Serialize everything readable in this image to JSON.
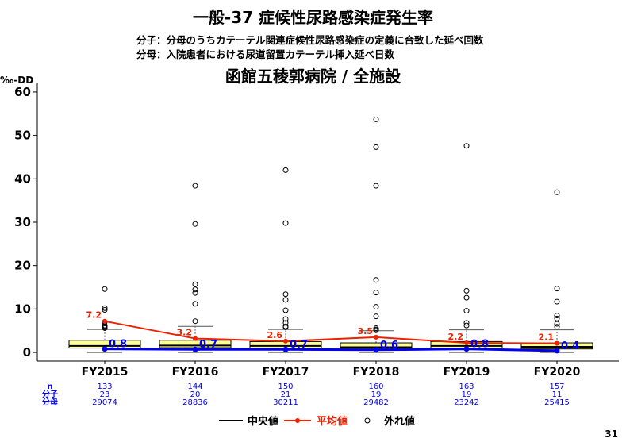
{
  "header": {
    "title": "一般-37  症候性尿路感染症発生率",
    "numerator_note": "分子：分母のうちカテーテル関連症候性尿路感染症の定義に合致した延べ回数",
    "denominator_note": "分母：入院患者における尿道留置カテーテル挿入延べ日数",
    "subtitle": "函館五稜郭病院  /  全施設",
    "y_unit": "‰-DD",
    "page_number": "31"
  },
  "colors": {
    "median": "#0000ee",
    "mean": "#ee2200",
    "box_fill": "#ffff99",
    "counts": "#0000ee"
  },
  "chart_data": {
    "type": "box",
    "categories": [
      "FY2015",
      "FY2016",
      "FY2017",
      "FY2018",
      "FY2019",
      "FY2020"
    ],
    "ylim": [
      -2,
      62
    ],
    "yticks": [
      0,
      10,
      20,
      30,
      40,
      50,
      60
    ],
    "hospital_values": [
      0.8,
      0.7,
      0.7,
      0.6,
      0.8,
      0.4
    ],
    "hospital_labels": [
      "0.8",
      "0.7",
      "0.7",
      "0.6",
      "0.8",
      "0.4"
    ],
    "mean_values": [
      7.2,
      3.2,
      2.6,
      3.5,
      2.2,
      2.1
    ],
    "mean_labels": [
      "7.2",
      "3.2",
      "2.6",
      "3.5",
      "2.2",
      "2.1"
    ],
    "boxes": [
      {
        "whisker_low": 0,
        "q1": 1.0,
        "median": 1.5,
        "q3": 2.8,
        "whisker_high": 5.3
      },
      {
        "whisker_low": 0,
        "q1": 1.1,
        "median": 1.6,
        "q3": 2.8,
        "whisker_high": 6.0
      },
      {
        "whisker_low": 0,
        "q1": 1.0,
        "median": 1.5,
        "q3": 2.5,
        "whisker_high": 5.3
      },
      {
        "whisker_low": 0,
        "q1": 0.8,
        "median": 1.2,
        "q3": 2.2,
        "whisker_high": 5.0
      },
      {
        "whisker_low": 0,
        "q1": 1.0,
        "median": 1.5,
        "q3": 2.5,
        "whisker_high": 5.2
      },
      {
        "whisker_low": 0,
        "q1": 0.8,
        "median": 1.3,
        "q3": 2.2,
        "whisker_high": 5.2
      }
    ],
    "outliers": [
      [
        14.6,
        10.2,
        9.8,
        7.0,
        6.2,
        6.0,
        5.8,
        5.6
      ],
      [
        38.4,
        29.6,
        15.7,
        14.5,
        13.7,
        11.2,
        7.2
      ],
      [
        42.0,
        29.8,
        13.4,
        12.1,
        9.7,
        7.7,
        6.8,
        6.0,
        5.8
      ],
      [
        53.7,
        47.3,
        38.4,
        16.7,
        13.8,
        10.5,
        8.3,
        5.6,
        5.3,
        5.1
      ],
      [
        47.6,
        14.2,
        12.6,
        9.6,
        6.8,
        6.2
      ],
      [
        36.9,
        14.7,
        11.7,
        8.5,
        7.8,
        6.6,
        5.9
      ]
    ],
    "table": {
      "row_labels": [
        "n",
        "分子",
        "分母"
      ],
      "n": [
        "133",
        "144",
        "150",
        "160",
        "163",
        "157"
      ],
      "numerator": [
        "23",
        "20",
        "21",
        "19",
        "19",
        "11"
      ],
      "denominator": [
        "29074",
        "28836",
        "30211",
        "29482",
        "23242",
        "25415"
      ]
    },
    "legend": {
      "median": "中央値",
      "mean": "平均値",
      "outlier": "外れ値",
      "position": "bottom-center"
    }
  }
}
